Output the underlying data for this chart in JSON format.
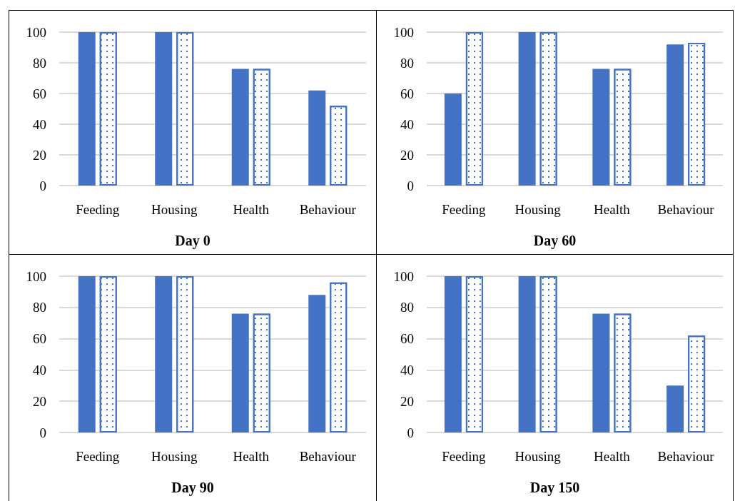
{
  "chart_data": [
    {
      "type": "bar",
      "title": "Day 0",
      "categories": [
        "Feeding",
        "Housing",
        "Health",
        "Behaviour"
      ],
      "series": [
        {
          "color": "#4472c4",
          "values": [
            100,
            100,
            76,
            62
          ]
        },
        {
          "color": "#4472c4",
          "values": [
            100,
            100,
            76,
            52
          ]
        }
      ],
      "ylim": [
        0,
        100
      ],
      "yticks": [
        0,
        20,
        40,
        60,
        80,
        100
      ],
      "grid": "y"
    },
    {
      "type": "bar",
      "title": "Day 60",
      "categories": [
        "Feeding",
        "Housing",
        "Health",
        "Behaviour"
      ],
      "series": [
        {
          "color": "#4472c4",
          "values": [
            60,
            100,
            76,
            92
          ]
        },
        {
          "color": "#4472c4",
          "values": [
            100,
            100,
            76,
            93
          ]
        }
      ],
      "ylim": [
        0,
        100
      ],
      "yticks": [
        0,
        20,
        40,
        60,
        80,
        100
      ],
      "grid": "y"
    },
    {
      "type": "bar",
      "title": "Day 90",
      "categories": [
        "Feeding",
        "Housing",
        "Health",
        "Behaviour"
      ],
      "series": [
        {
          "color": "#4472c4",
          "values": [
            100,
            100,
            76,
            88
          ]
        },
        {
          "color": "#4472c4",
          "values": [
            100,
            100,
            76,
            96
          ]
        }
      ],
      "ylim": [
        0,
        100
      ],
      "yticks": [
        0,
        20,
        40,
        60,
        80,
        100
      ],
      "grid": "y"
    },
    {
      "type": "bar",
      "title": "Day 150",
      "categories": [
        "Feeding",
        "Housing",
        "Health",
        "Behaviour"
      ],
      "series": [
        {
          "color": "#4472c4",
          "values": [
            100,
            100,
            76,
            30
          ]
        },
        {
          "color": "#4472c4",
          "values": [
            100,
            100,
            76,
            62
          ]
        }
      ],
      "ylim": [
        0,
        100
      ],
      "yticks": [
        0,
        20,
        40,
        60,
        80,
        100
      ],
      "grid": "y"
    }
  ]
}
